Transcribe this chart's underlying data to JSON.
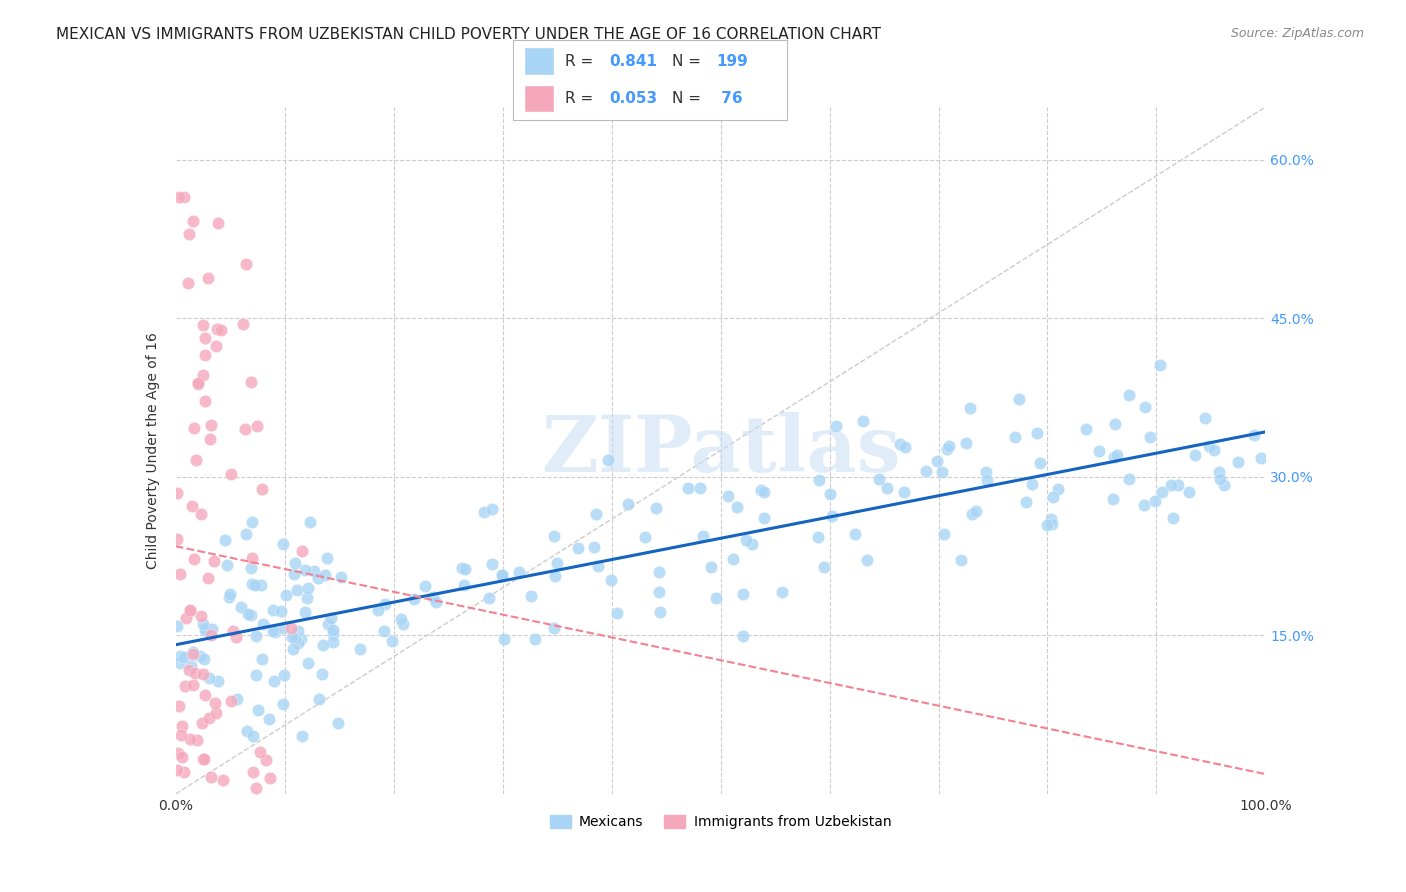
{
  "title": "MEXICAN VS IMMIGRANTS FROM UZBEKISTAN CHILD POVERTY UNDER THE AGE OF 16 CORRELATION CHART",
  "source": "Source: ZipAtlas.com",
  "ylabel": "Child Poverty Under the Age of 16",
  "xlim": [
    0,
    1.0
  ],
  "ylim": [
    0,
    0.65
  ],
  "ytick_pos": [
    0.0,
    0.15,
    0.3,
    0.45,
    0.6
  ],
  "ytick_labels": [
    "",
    "15.0%",
    "30.0%",
    "45.0%",
    "60.0%"
  ],
  "xtick_pos": [
    0.0,
    0.1,
    0.2,
    0.3,
    0.4,
    0.5,
    0.6,
    0.7,
    0.8,
    0.9,
    1.0
  ],
  "xtick_labels": [
    "0.0%",
    "",
    "",
    "",
    "",
    "",
    "",
    "",
    "",
    "",
    "100.0%"
  ],
  "mexican_color": "#a8d4f5",
  "uzbekistan_color": "#f5a8bc",
  "mexican_line_color": "#1565c0",
  "uzbekistan_line_color": "#f48090",
  "diagonal_color": "#cccccc",
  "R_mexican": 0.841,
  "N_mexican": 199,
  "R_uzbekistan": 0.053,
  "N_uzbekistan": 76,
  "legend_label_mexican": "Mexicans",
  "legend_label_uzbekistan": "Immigrants from Uzbekistan",
  "watermark": "ZIPatlas",
  "background_color": "#ffffff",
  "grid_color": "#cccccc",
  "title_fontsize": 11,
  "axis_label_fontsize": 10,
  "tick_fontsize": 10,
  "tick_color": "#4499ff",
  "legend_box_color": "#a8d4f5",
  "legend_box_color2": "#f5a8bc"
}
